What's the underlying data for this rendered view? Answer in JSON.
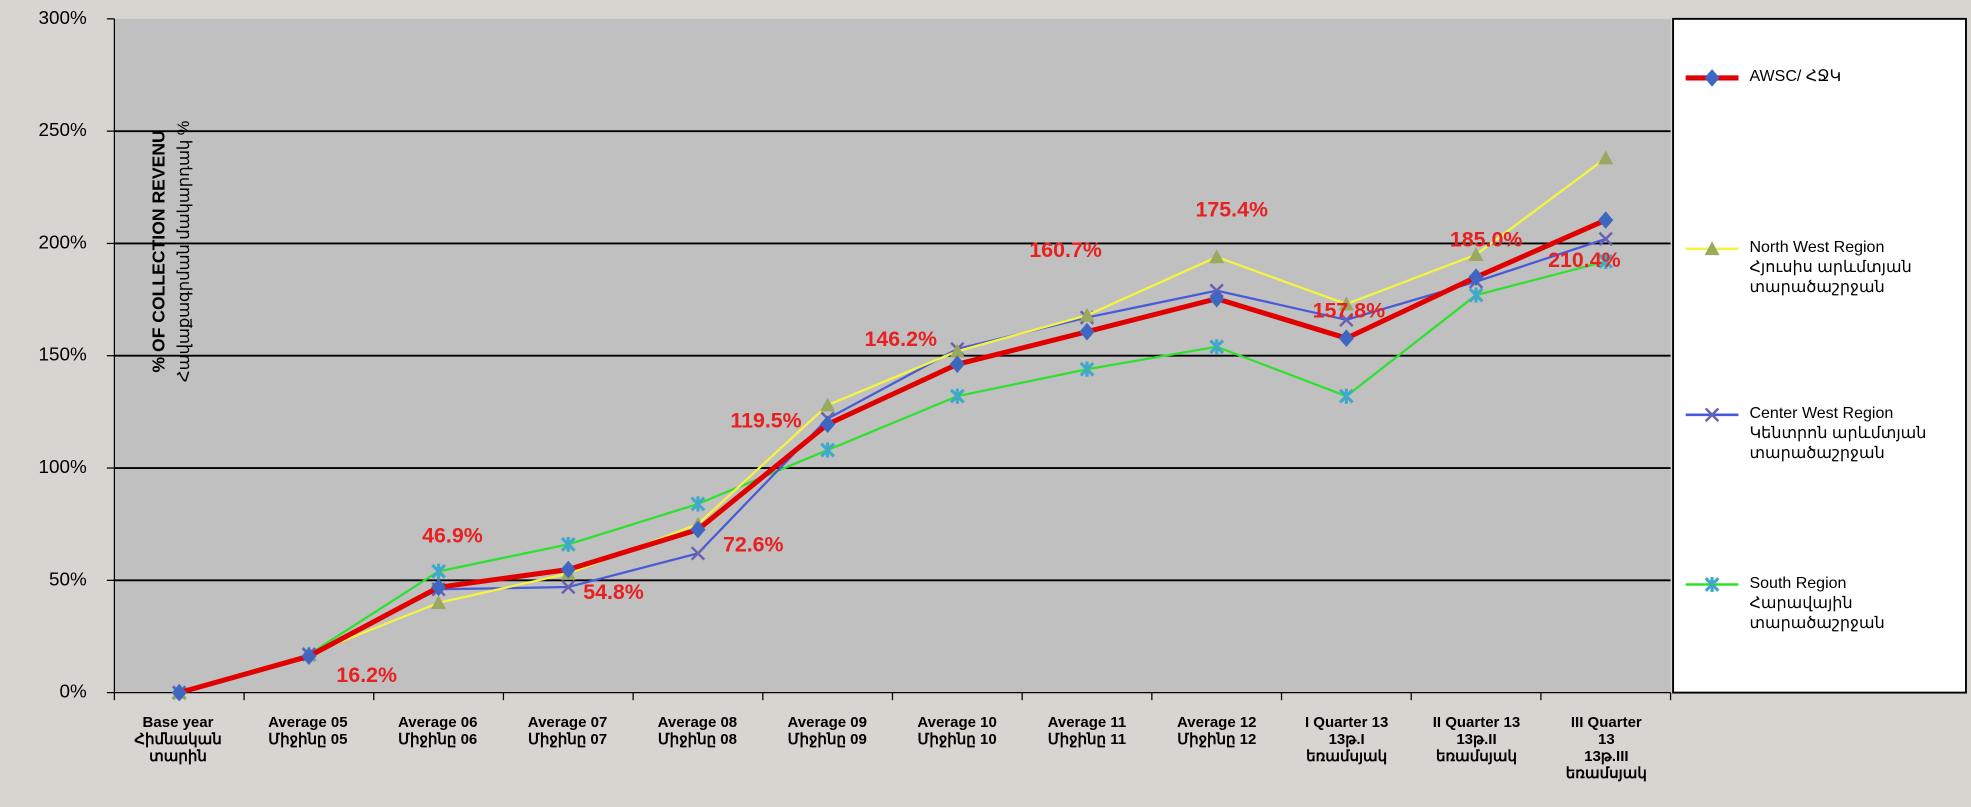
{
  "chart_data": {
    "type": "line",
    "categories": [
      "Base year\nՀիմնական\nտարին",
      "Average 05\nՄիջինը 05",
      "Average 06\nՄիջինը 06",
      "Average 07\nՄիջինը 07",
      "Average 08\nՄիջինը 08",
      "Average 09\nՄիջինը 09",
      "Average 10\nՄիջինը 10",
      "Average 11\nՄիջինը 11",
      "Average 12\nՄիջինը 12",
      "I Quarter 13\n13թ.I\nեռամսյակ",
      "II Quarter 13\n13թ.II\nեռամսյակ",
      "III Quarter\n13\n13թ.III\nեռամսյակ"
    ],
    "y_label": [
      "% OF COLLECTION REVENU",
      "Հավաքագրման մակարդակ %"
    ],
    "ylim": [
      0,
      300
    ],
    "yticks": [
      {
        "value": 0,
        "label": "0%"
      },
      {
        "value": 50,
        "label": "50%"
      },
      {
        "value": 100,
        "label": "100%"
      },
      {
        "value": 150,
        "label": "150%"
      },
      {
        "value": 200,
        "label": "200%"
      },
      {
        "value": 250,
        "label": "250%"
      },
      {
        "value": 300,
        "label": "300%"
      }
    ],
    "grid": true,
    "series": [
      {
        "name": "AWSC/ ՀՋԿ",
        "color": "#e00000",
        "marker": "diamond",
        "marker_color": "#3f66c0",
        "values": [
          0,
          16.2,
          46.9,
          54.8,
          72.6,
          119.5,
          146.2,
          160.7,
          175.4,
          157.8,
          185.0,
          210.4
        ],
        "value_labels": [
          null,
          "16.2%",
          "46.9%",
          "54.8%",
          "72.6%",
          "119.5%",
          "146.2%",
          "160.7%",
          "175.4%",
          "157.8%",
          "185.0%",
          "210.4%"
        ]
      },
      {
        "name": "North West Region\nՀյուսիս արևմտյան\nտարածաշրջան",
        "color": "#f5f540",
        "marker": "triangle",
        "marker_color": "#9aa860",
        "values": [
          0,
          17,
          40,
          53,
          75,
          128,
          152,
          168,
          194,
          173,
          195,
          238
        ]
      },
      {
        "name": "Center West Region\nԿենտրոն արևմտյան\nտարածաշրջան",
        "color": "#4a5ad8",
        "marker": "x",
        "marker_color": "#6a62b0",
        "values": [
          0,
          17,
          46,
          47,
          62,
          122,
          153,
          167,
          179,
          166,
          183,
          202
        ]
      },
      {
        "name": "South Region\nՀարավային\nտարածաշրջան",
        "color": "#30e030",
        "marker": "star",
        "marker_color": "#40a8c8",
        "values": [
          0,
          17,
          54,
          66,
          84,
          108,
          132,
          144,
          154,
          132,
          177,
          192
        ]
      }
    ]
  }
}
